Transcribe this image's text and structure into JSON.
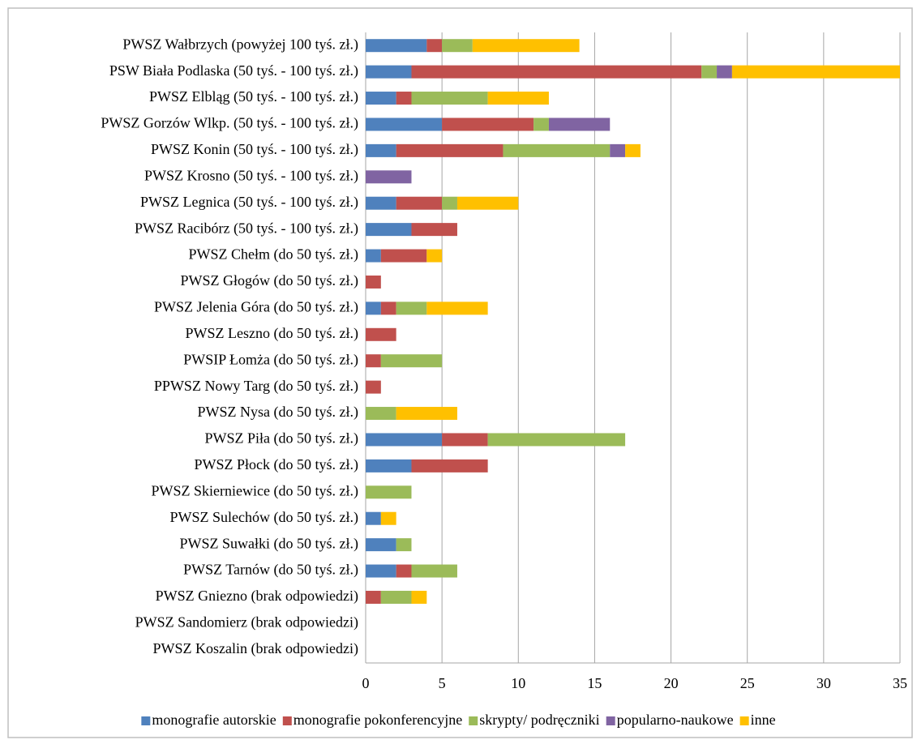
{
  "chart_data": {
    "type": "stacked-bar-horizontal",
    "categories": [
      "PWSZ Wałbrzych (powyżej 100 tyś. zł.)",
      "PSW Biała Podlaska (50 tyś. - 100 tyś. zł.)",
      "PWSZ Elbląg (50 tyś. - 100 tyś. zł.)",
      "PWSZ Gorzów Wlkp. (50 tyś. - 100 tyś. zł.)",
      "PWSZ Konin (50 tyś. - 100 tyś. zł.)",
      "PWSZ Krosno (50 tyś. - 100 tyś. zł.)",
      "PWSZ Legnica (50 tyś. - 100 tyś. zł.)",
      "PWSZ Racibórz (50 tyś. - 100 tyś. zł.)",
      "PWSZ Chełm (do 50 tyś. zł.)",
      "PWSZ Głogów (do 50 tyś. zł.)",
      "PWSZ Jelenia Góra (do 50 tyś. zł.)",
      "PWSZ Leszno (do 50 tyś. zł.)",
      "PWSIP Łomża (do 50 tyś. zł.)",
      "PPWSZ Nowy Targ (do 50 tyś. zł.)",
      "PWSZ Nysa (do 50 tyś. zł.)",
      "PWSZ Piła (do 50 tyś. zł.)",
      "PWSZ Płock (do 50 tyś. zł.)",
      "PWSZ Skierniewice (do 50 tyś. zł.)",
      "PWSZ Sulechów (do 50 tyś. zł.)",
      "PWSZ Suwałki (do 50 tyś. zł.)",
      "PWSZ Tarnów (do 50 tyś. zł.)",
      "PWSZ Gniezno (brak odpowiedzi)",
      "PWSZ Sandomierz (brak odpowiedzi)",
      "PWSZ Koszalin (brak odpowiedzi)"
    ],
    "series": [
      {
        "name": "monografie autorskie",
        "color": "#4f81bd",
        "values": [
          4,
          3,
          2,
          5,
          2,
          0,
          2,
          3,
          1,
          0,
          1,
          0,
          0,
          0,
          0,
          5,
          3,
          0,
          1,
          2,
          2,
          0,
          0,
          0
        ]
      },
      {
        "name": "monografie pokonferencyjne",
        "color": "#c0504d",
        "values": [
          1,
          19,
          1,
          6,
          7,
          0,
          3,
          3,
          3,
          1,
          1,
          2,
          1,
          1,
          0,
          3,
          5,
          0,
          0,
          0,
          1,
          1,
          0,
          0
        ]
      },
      {
        "name": "skrypty/ podręczniki",
        "color": "#9bbb59",
        "values": [
          2,
          1,
          5,
          1,
          7,
          0,
          1,
          0,
          0,
          0,
          2,
          0,
          4,
          0,
          2,
          9,
          0,
          3,
          0,
          1,
          3,
          2,
          0,
          0
        ]
      },
      {
        "name": "popularno-naukowe",
        "color": "#8064a2",
        "values": [
          0,
          1,
          0,
          4,
          1,
          3,
          0,
          0,
          0,
          0,
          0,
          0,
          0,
          0,
          0,
          0,
          0,
          0,
          0,
          0,
          0,
          0,
          0,
          0
        ]
      },
      {
        "name": "inne",
        "color": "#ffc000",
        "values": [
          7,
          11,
          4,
          0,
          1,
          0,
          4,
          0,
          1,
          0,
          4,
          0,
          0,
          0,
          4,
          0,
          0,
          0,
          1,
          0,
          0,
          1,
          0,
          0
        ]
      }
    ],
    "xlim": [
      0,
      35
    ],
    "xticks": [
      0,
      5,
      10,
      15,
      20,
      25,
      30,
      35
    ],
    "grid": true,
    "legend": "bottom"
  }
}
